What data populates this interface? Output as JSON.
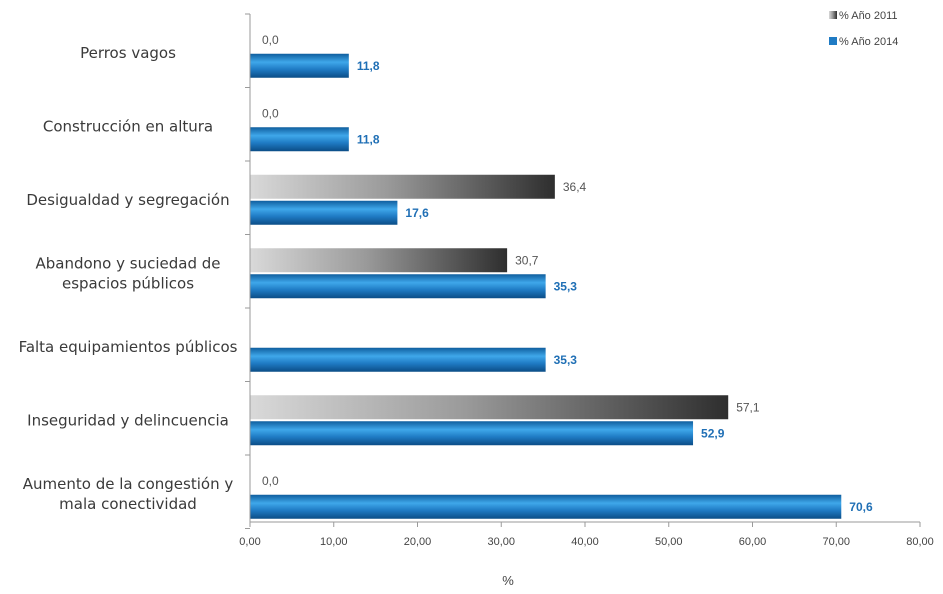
{
  "chart_data": {
    "type": "bar",
    "orientation": "horizontal",
    "categories": [
      [
        "Perros vagos"
      ],
      [
        "Construcción en altura"
      ],
      [
        "Desigualdad y segregación"
      ],
      [
        "Abandono y suciedad de",
        "espacios públicos"
      ],
      [
        "Falta equipamientos públicos"
      ],
      [
        "Inseguridad y delincuencia"
      ],
      [
        "Aumento de la congestión y",
        "mala conectividad"
      ]
    ],
    "series": [
      {
        "name": "% Año 2011",
        "values": [
          0.0,
          0.0,
          36.4,
          30.7,
          null,
          57.1,
          0.0
        ],
        "labels": [
          "0,0",
          "0,0",
          "36,4",
          "30,7",
          "",
          "57,1",
          "0,0"
        ],
        "color": "#8c8c8c"
      },
      {
        "name": "% Año 2014",
        "values": [
          11.8,
          11.8,
          17.6,
          35.3,
          35.3,
          52.9,
          70.6
        ],
        "labels": [
          "11,8",
          "11,8",
          "17,6",
          "35,3",
          "35,3",
          "52,9",
          "70,6"
        ],
        "color": "#1f7bc4"
      }
    ],
    "xlim": [
      0,
      80
    ],
    "xticks": [
      0,
      10,
      20,
      30,
      40,
      50,
      60,
      70,
      80
    ],
    "xtick_labels": [
      "0,00",
      "10,00",
      "20,00",
      "30,00",
      "40,00",
      "50,00",
      "60,00",
      "70,00",
      "80,00"
    ],
    "xlabel": "%",
    "ylabel": "",
    "title": "",
    "legend_position": "top-right",
    "grid": false
  }
}
